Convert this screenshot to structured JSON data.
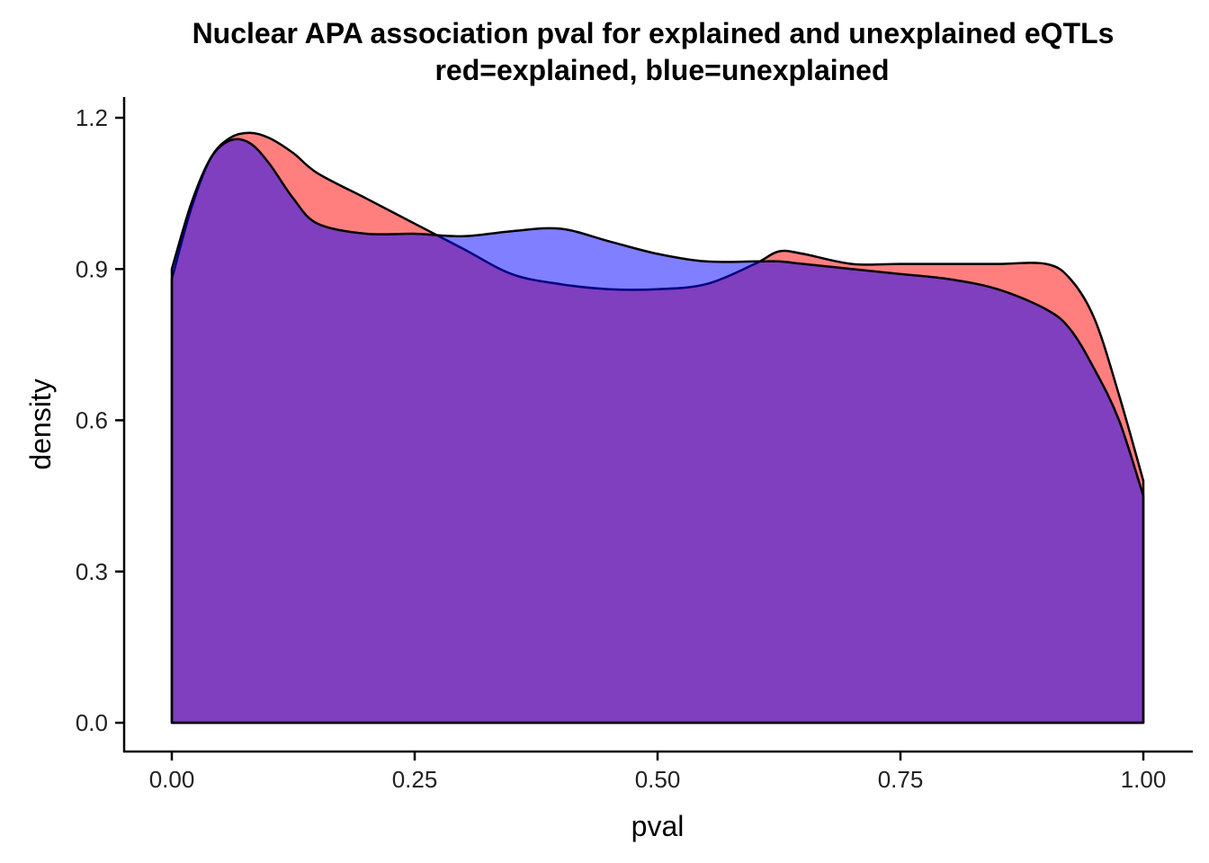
{
  "chart_data": {
    "type": "area",
    "title": "Nuclear APA association pval for explained and unexplained eQTLs",
    "subtitle": "red=explained, blue=unexplained",
    "xlabel": "pval",
    "ylabel": "density",
    "xlim": [
      0.0,
      1.0
    ],
    "ylim": [
      0.0,
      1.2
    ],
    "x_ticks": [
      "0.00",
      "0.25",
      "0.50",
      "0.75",
      "1.00"
    ],
    "y_ticks": [
      "0.0",
      "0.3",
      "0.6",
      "0.9",
      "1.2"
    ],
    "grid": false,
    "legend": "none",
    "x": [
      0.0,
      0.02,
      0.04,
      0.06,
      0.08,
      0.1,
      0.125,
      0.15,
      0.2,
      0.25,
      0.3,
      0.35,
      0.4,
      0.45,
      0.5,
      0.55,
      0.6,
      0.625,
      0.65,
      0.7,
      0.75,
      0.8,
      0.85,
      0.9,
      0.925,
      0.95,
      0.975,
      1.0
    ],
    "series": [
      {
        "color": "#ff0000",
        "fill": "#ff0000",
        "fill_opacity": 0.5,
        "values": [
          0.88,
          1.02,
          1.12,
          1.16,
          1.17,
          1.16,
          1.13,
          1.09,
          1.04,
          0.99,
          0.94,
          0.89,
          0.87,
          0.86,
          0.86,
          0.87,
          0.91,
          0.935,
          0.93,
          0.91,
          0.91,
          0.91,
          0.91,
          0.91,
          0.88,
          0.8,
          0.65,
          0.48
        ]
      },
      {
        "color": "#0000ff",
        "fill": "#0000ff",
        "fill_opacity": 0.5,
        "values": [
          0.9,
          1.03,
          1.12,
          1.155,
          1.15,
          1.11,
          1.04,
          0.99,
          0.97,
          0.97,
          0.965,
          0.975,
          0.98,
          0.955,
          0.93,
          0.915,
          0.915,
          0.915,
          0.91,
          0.9,
          0.89,
          0.88,
          0.86,
          0.82,
          0.78,
          0.7,
          0.6,
          0.45
        ]
      }
    ]
  }
}
